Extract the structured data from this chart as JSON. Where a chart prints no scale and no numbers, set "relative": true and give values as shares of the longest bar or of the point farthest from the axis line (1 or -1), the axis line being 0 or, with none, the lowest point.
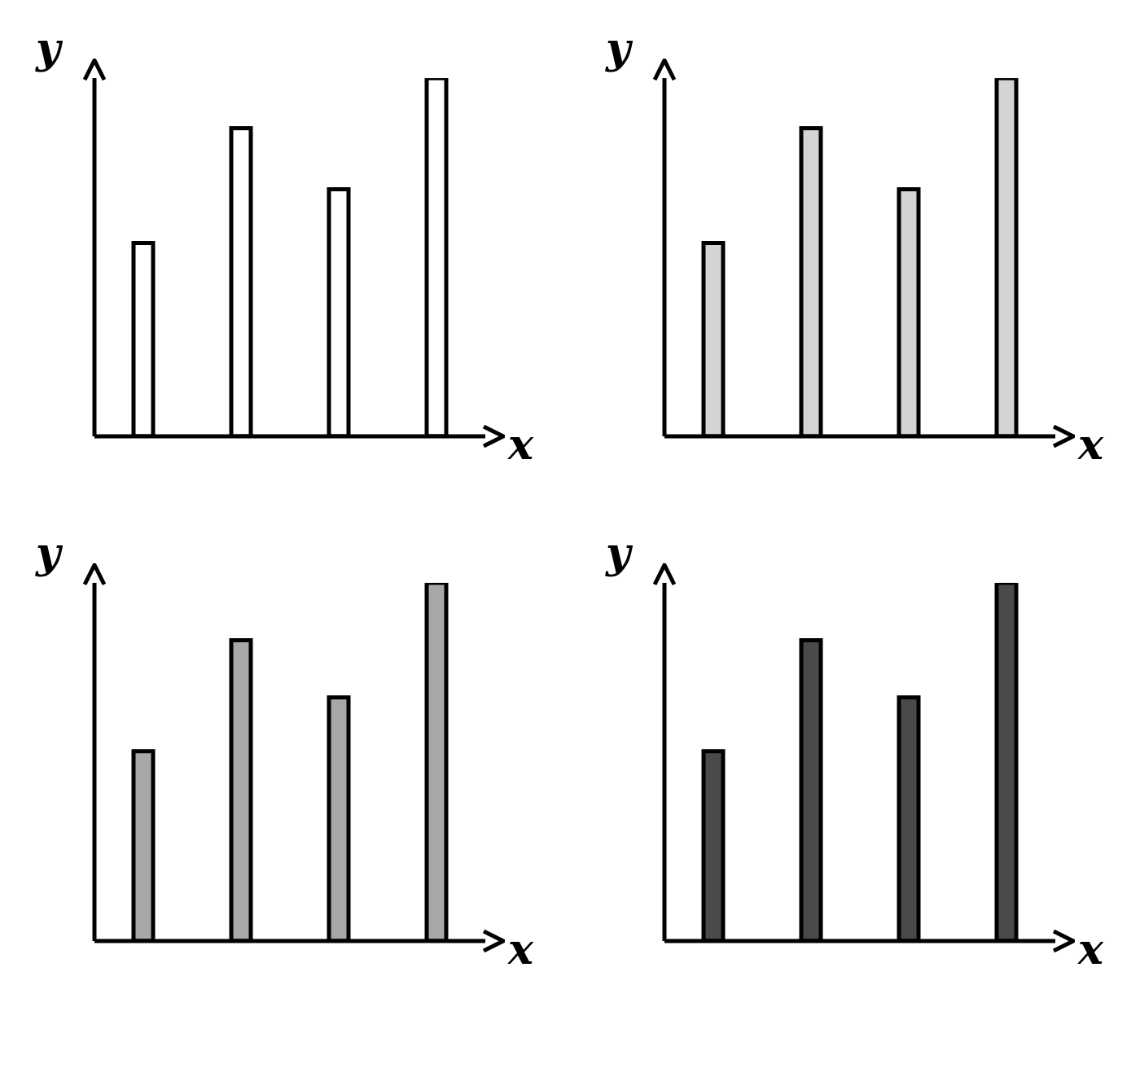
{
  "chart_data": [
    {
      "type": "bar",
      "xlabel": "x",
      "ylabel": "y",
      "categories": [
        null,
        null,
        null,
        null
      ],
      "values": [
        0.54,
        0.86,
        0.69,
        1
      ],
      "color": "#ffffff",
      "relative": true
    },
    {
      "type": "bar",
      "xlabel": "x",
      "ylabel": "y",
      "categories": [
        null,
        null,
        null,
        null
      ],
      "values": [
        0.54,
        0.86,
        0.69,
        1
      ],
      "color": "#d4d4d4",
      "relative": true
    },
    {
      "type": "bar",
      "xlabel": "x",
      "ylabel": "y",
      "categories": [
        null,
        null,
        null,
        null
      ],
      "values": [
        0.53,
        0.84,
        0.68,
        1
      ],
      "color": "#a8a8a8",
      "relative": true
    },
    {
      "type": "bar",
      "xlabel": "x",
      "ylabel": "y",
      "categories": [
        null,
        null,
        null,
        null
      ],
      "values": [
        0.53,
        0.84,
        0.68,
        1
      ],
      "color": "#4a4a4a",
      "relative": true
    }
  ]
}
